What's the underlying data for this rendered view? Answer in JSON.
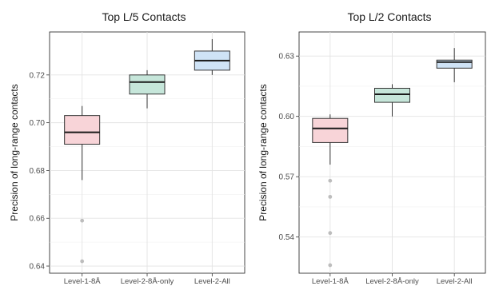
{
  "chart_data": [
    {
      "type": "box",
      "title": "Top L/5 Contacts",
      "xlabel": "",
      "ylabel": "Precision of long-range contacts",
      "categories": [
        "Level-1-8Å",
        "Level-2-8Å-only",
        "Level-2-All"
      ],
      "ylim": [
        0.637,
        0.738
      ],
      "yticks": [
        0.64,
        0.66,
        0.68,
        0.7,
        0.72
      ],
      "ytick_labels": [
        "0.64",
        "0.66",
        "0.68",
        "0.70",
        "0.72"
      ],
      "grid": true,
      "boxes": [
        {
          "category": "Level-1-8Å",
          "min": 0.676,
          "q1": 0.691,
          "median": 0.696,
          "q3": 0.703,
          "max": 0.707,
          "outliers": [
            0.659,
            0.642
          ],
          "fill": "#f8d4d8"
        },
        {
          "category": "Level-2-8Å-only",
          "min": 0.706,
          "q1": 0.712,
          "median": 0.717,
          "q3": 0.72,
          "max": 0.722,
          "outliers": [],
          "fill": "#c6e6da"
        },
        {
          "category": "Level-2-All",
          "min": 0.72,
          "q1": 0.722,
          "median": 0.726,
          "q3": 0.73,
          "max": 0.735,
          "outliers": [],
          "fill": "#cfe3f6"
        }
      ]
    },
    {
      "type": "box",
      "title": "Top L/2 Contacts",
      "xlabel": "",
      "ylabel": "Precision of long-range contacts",
      "categories": [
        "Level-1-8Å",
        "Level-2-8Å-only",
        "Level-2-All"
      ],
      "ylim": [
        0.522,
        0.642
      ],
      "yticks": [
        0.54,
        0.57,
        0.6,
        0.63
      ],
      "ytick_labels": [
        "0.54",
        "0.57",
        "0.60",
        "0.63"
      ],
      "grid": true,
      "boxes": [
        {
          "category": "Level-1-8Å",
          "min": 0.576,
          "q1": 0.587,
          "median": 0.594,
          "q3": 0.599,
          "max": 0.601,
          "outliers": [
            0.568,
            0.56,
            0.542,
            0.526
          ],
          "fill": "#f8d4d8"
        },
        {
          "category": "Level-2-8Å-only",
          "min": 0.6,
          "q1": 0.607,
          "median": 0.611,
          "q3": 0.614,
          "max": 0.616,
          "outliers": [],
          "fill": "#c6e6da"
        },
        {
          "category": "Level-2-All",
          "min": 0.617,
          "q1": 0.624,
          "median": 0.627,
          "q3": 0.628,
          "max": 0.634,
          "outliers": [],
          "fill": "#cfe3f6"
        }
      ]
    }
  ]
}
